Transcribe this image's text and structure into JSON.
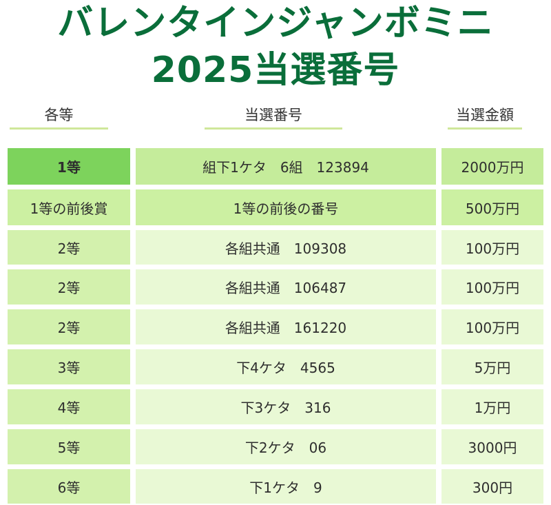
{
  "title": {
    "line1": "バレンタインジャンボミニ",
    "line2": "2025当選番号"
  },
  "headers": {
    "rank": "各等",
    "number": "当選番号",
    "amount": "当選金額"
  },
  "colors": {
    "title": "#0a6e3a",
    "underline": "#cfe79a",
    "row1_rank": "#7dd35c",
    "row1": "#c5ec9b",
    "row2": "#ccf0a2",
    "row_rank": "#d3f1ad",
    "row_light": "#e9f9d5"
  },
  "rows": [
    {
      "rank": "1等",
      "number": "組下1ケタ　6組　123894",
      "amount": "2000万円"
    },
    {
      "rank": "1等の前後賞",
      "number": "1等の前後の番号",
      "amount": "500万円"
    },
    {
      "rank": "2等",
      "number": "各組共通　109308",
      "amount": "100万円"
    },
    {
      "rank": "2等",
      "number": "各組共通　106487",
      "amount": "100万円"
    },
    {
      "rank": "2等",
      "number": "各組共通　161220",
      "amount": "100万円"
    },
    {
      "rank": "3等",
      "number": "下4ケタ　4565",
      "amount": "5万円"
    },
    {
      "rank": "4等",
      "number": "下3ケタ　316",
      "amount": "1万円"
    },
    {
      "rank": "5等",
      "number": "下2ケタ　06",
      "amount": "3000円"
    },
    {
      "rank": "6等",
      "number": "下1ケタ　9",
      "amount": "300円"
    }
  ]
}
